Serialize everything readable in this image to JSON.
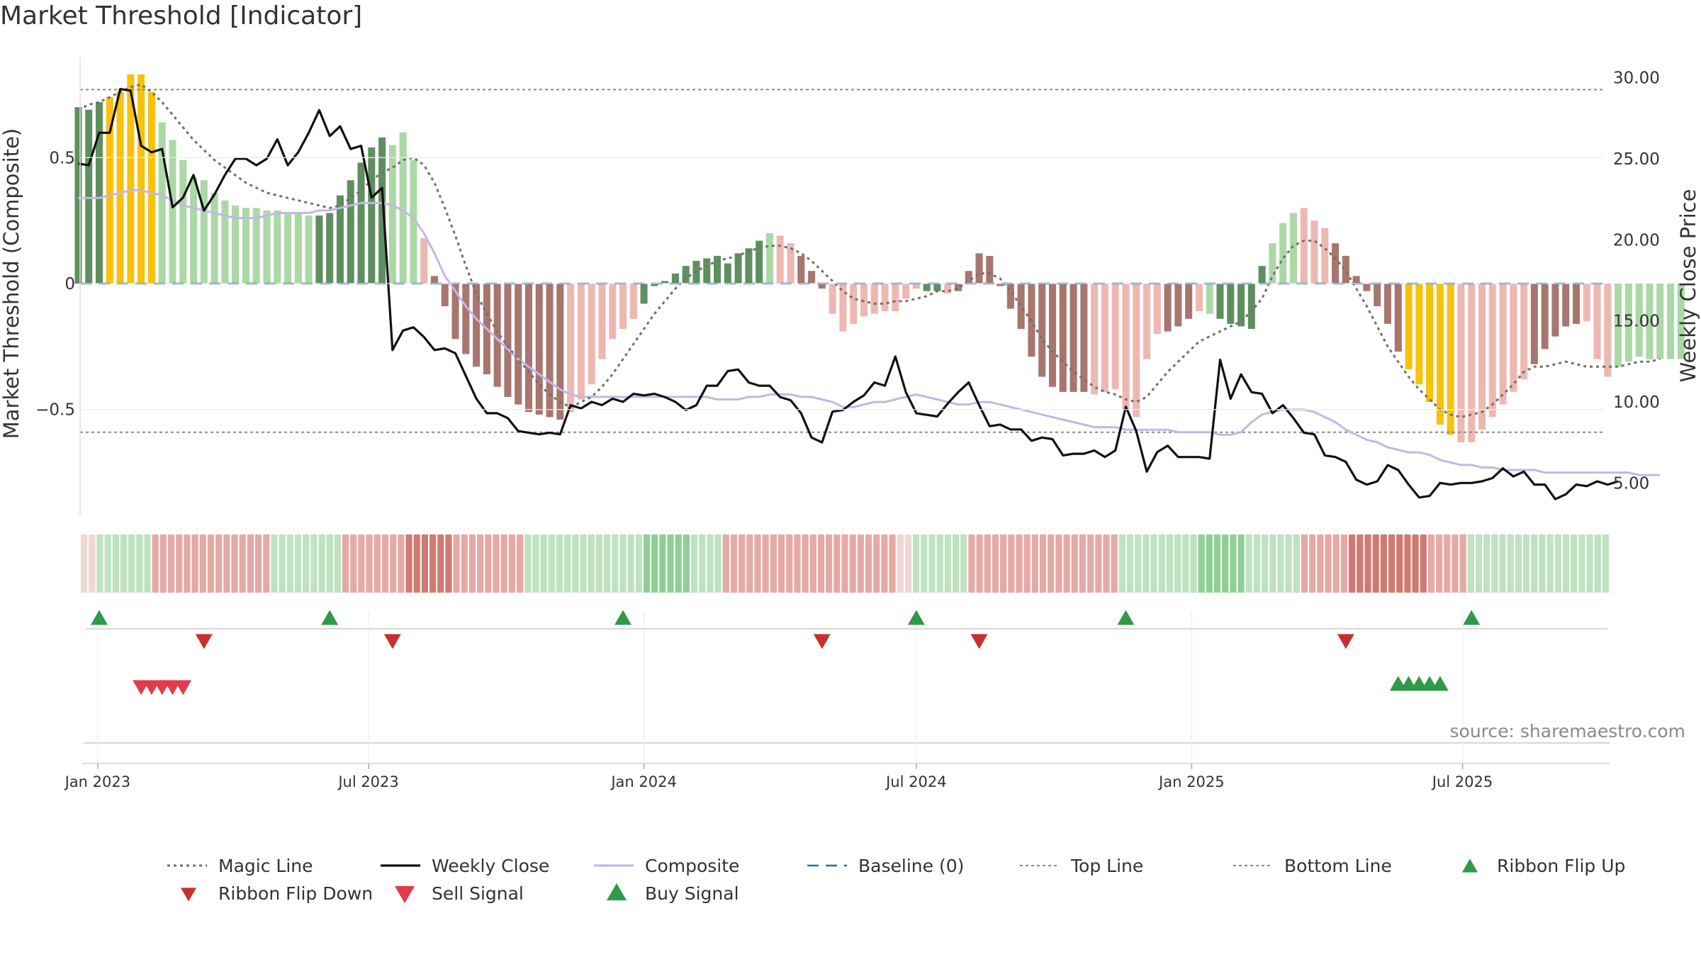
{
  "title": "Market Threshold [Indicator]",
  "source_label": "source: sharemaestro.com",
  "colors": {
    "greenDark": "#5f8f5f",
    "greenLight": "#acd8a6",
    "redDark": "#a8766f",
    "redLight": "#eeb8b2",
    "yellow": "#f8c10b",
    "composite": "#c2b8e6",
    "baseline": "#2d6ea3",
    "dotted": "#777777",
    "ribbonFlipDown": "#c8302f",
    "sellSignal": "#e23b4b",
    "buySignal": "#2f9a49"
  },
  "chart_data": {
    "type": "bar",
    "title": "Market Threshold [Indicator]",
    "ylabel": "Market Threshold (Composite)",
    "y2label": "Weekly Close Price",
    "x_ticks": [
      "Jan 2023",
      "Jul 2023",
      "Jan 2024",
      "Jul 2024",
      "Jan 2025",
      "Jul 2025"
    ],
    "x_range": [
      "2023-01-02",
      "2025-09-15"
    ],
    "y_ticks": [
      "0.5",
      "0",
      "−0.5"
    ],
    "y_tick_values": [
      0.5,
      0,
      -0.5
    ],
    "y2_ticks": [
      "30.00",
      "25.00",
      "20.00",
      "15.00",
      "10.00",
      "5.00"
    ],
    "y2_tick_values": [
      30,
      25,
      20,
      15,
      10,
      5
    ],
    "ylim": [
      -0.92,
      0.92
    ],
    "y2lim": [
      3.0,
      31.6
    ],
    "top_line": 0.77,
    "bottom_line": -0.59,
    "bar_start": "2022-12-19",
    "bar_interval_days": 7,
    "composite_bars": [
      0.7,
      0.69,
      0.72,
      0.74,
      0.76,
      0.83,
      0.83,
      0.76,
      0.64,
      0.57,
      0.49,
      0.42,
      0.41,
      0.36,
      0.33,
      0.31,
      0.3,
      0.3,
      0.29,
      0.29,
      0.28,
      0.28,
      0.27,
      0.27,
      0.28,
      0.35,
      0.41,
      0.48,
      0.54,
      0.58,
      0.55,
      0.6,
      0.49,
      0.18,
      0.03,
      -0.09,
      -0.22,
      -0.28,
      -0.33,
      -0.36,
      -0.41,
      -0.45,
      -0.48,
      -0.51,
      -0.52,
      -0.53,
      -0.54,
      -0.51,
      -0.46,
      -0.4,
      -0.3,
      -0.22,
      -0.18,
      -0.14,
      -0.08,
      -0.01,
      0.01,
      0.04,
      0.07,
      0.09,
      0.1,
      0.11,
      0.08,
      0.12,
      0.14,
      0.17,
      0.2,
      0.19,
      0.16,
      0.11,
      0.05,
      -0.02,
      -0.12,
      -0.19,
      -0.16,
      -0.13,
      -0.12,
      -0.11,
      -0.11,
      -0.06,
      -0.02,
      -0.03,
      -0.03,
      -0.04,
      -0.03,
      0.05,
      0.12,
      0.11,
      -0.01,
      -0.1,
      -0.18,
      -0.29,
      -0.37,
      -0.41,
      -0.43,
      -0.43,
      -0.43,
      -0.44,
      -0.43,
      -0.42,
      -0.5,
      -0.53,
      -0.3,
      -0.2,
      -0.19,
      -0.17,
      -0.14,
      -0.11,
      -0.12,
      -0.14,
      -0.16,
      -0.17,
      -0.18,
      0.07,
      0.16,
      0.24,
      0.28,
      0.3,
      0.25,
      0.22,
      0.16,
      0.11,
      0.03,
      -0.03,
      -0.09,
      -0.16,
      -0.27,
      -0.34,
      -0.4,
      -0.47,
      -0.56,
      -0.6,
      -0.63,
      -0.63,
      -0.58,
      -0.53,
      -0.48,
      -0.43,
      -0.38,
      -0.32,
      -0.26,
      -0.21,
      -0.17,
      -0.16,
      -0.15,
      -0.3,
      -0.37,
      -0.33,
      -0.31,
      -0.29,
      -0.3,
      -0.3,
      -0.3,
      -0.3
    ],
    "bar_color_codes": "GGGYYYYYLLLLLLLLLLLLLLLGGGGGGGLLLlRRRRRRRRRRRRRlllllllGGGGGGGGGGGGLllRRRlllllllllGGlRRRRRRRRRRRRRlllllllRRRlLGGGGGLLLlllRRRRRRRYYYYYlllllllRRRRRlll",
    "series": [
      {
        "name": "Magic Line",
        "style": "dotted",
        "axis": "left",
        "values": [
          0.69,
          0.71,
          0.72,
          0.74,
          0.76,
          0.78,
          0.79,
          0.76,
          0.72,
          0.67,
          0.62,
          0.57,
          0.53,
          0.49,
          0.46,
          0.43,
          0.4,
          0.38,
          0.36,
          0.35,
          0.34,
          0.33,
          0.32,
          0.31,
          0.3,
          0.31,
          0.34,
          0.37,
          0.41,
          0.44,
          0.46,
          0.49,
          0.5,
          0.47,
          0.4,
          0.3,
          0.19,
          0.07,
          -0.04,
          -0.12,
          -0.19,
          -0.25,
          -0.3,
          -0.35,
          -0.4,
          -0.44,
          -0.47,
          -0.49,
          -0.47,
          -0.45,
          -0.41,
          -0.36,
          -0.3,
          -0.24,
          -0.18,
          -0.12,
          -0.07,
          -0.02,
          0.02,
          0.05,
          0.07,
          0.09,
          0.1,
          0.11,
          0.13,
          0.14,
          0.15,
          0.15,
          0.14,
          0.12,
          0.09,
          0.05,
          0.01,
          -0.03,
          -0.06,
          -0.07,
          -0.08,
          -0.08,
          -0.07,
          -0.07,
          -0.06,
          -0.05,
          -0.03,
          -0.03,
          -0.02,
          0.01,
          0.04,
          0.04,
          0.02,
          -0.03,
          -0.09,
          -0.15,
          -0.22,
          -0.27,
          -0.31,
          -0.35,
          -0.38,
          -0.41,
          -0.43,
          -0.44,
          -0.46,
          -0.47,
          -0.45,
          -0.4,
          -0.35,
          -0.31,
          -0.27,
          -0.23,
          -0.21,
          -0.19,
          -0.17,
          -0.15,
          -0.11,
          -0.06,
          0.03,
          0.1,
          0.15,
          0.17,
          0.17,
          0.14,
          0.1,
          0.05,
          -0.02,
          -0.09,
          -0.17,
          -0.25,
          -0.31,
          -0.37,
          -0.42,
          -0.46,
          -0.5,
          -0.52,
          -0.53,
          -0.52,
          -0.51,
          -0.48,
          -0.44,
          -0.4,
          -0.35,
          -0.33,
          -0.33,
          -0.32,
          -0.31,
          -0.32,
          -0.33,
          -0.33,
          -0.33,
          -0.33,
          -0.32,
          -0.31,
          -0.31,
          -0.3
        ]
      },
      {
        "name": "Weekly Close",
        "style": "solid",
        "axis": "right",
        "values": [
          24.7,
          24.6,
          26.6,
          26.6,
          29.3,
          29.2,
          25.8,
          25.4,
          25.6,
          22.0,
          22.6,
          24.0,
          21.8,
          22.8,
          24.0,
          25.0,
          25.0,
          24.6,
          25.0,
          26.2,
          24.6,
          25.4,
          26.6,
          28.0,
          26.4,
          27.0,
          25.6,
          25.8,
          22.6,
          23.2,
          13.2,
          14.4,
          14.6,
          14.0,
          13.2,
          13.3,
          13.0,
          11.6,
          10.2,
          9.3,
          9.3,
          9.0,
          8.2,
          8.1,
          8.0,
          8.1,
          8.0,
          9.8,
          9.6,
          10.0,
          9.8,
          10.2,
          10.0,
          10.5,
          10.4,
          10.5,
          10.3,
          10.0,
          9.5,
          9.8,
          11.0,
          11.0,
          11.9,
          12.0,
          11.2,
          11.0,
          11.0,
          10.3,
          10.1,
          9.3,
          7.8,
          7.5,
          9.4,
          9.5,
          10.0,
          10.4,
          11.2,
          11.0,
          12.8,
          10.6,
          9.3,
          9.2,
          9.1,
          9.9,
          10.6,
          11.2,
          9.8,
          8.5,
          8.6,
          8.3,
          8.3,
          7.6,
          7.8,
          7.7,
          6.7,
          6.8,
          6.8,
          7.0,
          6.6,
          7.0,
          9.7,
          8.2,
          5.7,
          6.9,
          7.3,
          6.6,
          6.6,
          6.6,
          6.5,
          12.6,
          10.2,
          11.7,
          10.6,
          10.5,
          9.3,
          9.8,
          9.0,
          8.1,
          8.0,
          6.7,
          6.6,
          6.3,
          5.2,
          4.9,
          5.1,
          6.1,
          5.8,
          4.9,
          4.1,
          4.2,
          5.0,
          4.9,
          5.0,
          5.0,
          5.1,
          5.3,
          5.9,
          5.4,
          5.7,
          4.9,
          4.9,
          4.0,
          4.3,
          4.9,
          4.8,
          5.1,
          4.9,
          5.1
        ]
      },
      {
        "name": "Composite",
        "style": "solid",
        "axis": "left",
        "values": [
          0.34,
          0.34,
          0.34,
          0.35,
          0.36,
          0.37,
          0.37,
          0.36,
          0.35,
          0.33,
          0.31,
          0.3,
          0.29,
          0.28,
          0.27,
          0.26,
          0.26,
          0.26,
          0.27,
          0.28,
          0.28,
          0.28,
          0.28,
          0.29,
          0.29,
          0.3,
          0.31,
          0.32,
          0.32,
          0.32,
          0.31,
          0.29,
          0.26,
          0.2,
          0.12,
          0.03,
          -0.03,
          -0.09,
          -0.14,
          -0.18,
          -0.22,
          -0.26,
          -0.3,
          -0.33,
          -0.36,
          -0.39,
          -0.42,
          -0.44,
          -0.45,
          -0.45,
          -0.45,
          -0.45,
          -0.45,
          -0.45,
          -0.45,
          -0.45,
          -0.45,
          -0.45,
          -0.45,
          -0.45,
          -0.45,
          -0.46,
          -0.46,
          -0.46,
          -0.45,
          -0.45,
          -0.44,
          -0.44,
          -0.44,
          -0.45,
          -0.45,
          -0.46,
          -0.47,
          -0.49,
          -0.49,
          -0.48,
          -0.47,
          -0.47,
          -0.46,
          -0.45,
          -0.44,
          -0.45,
          -0.46,
          -0.47,
          -0.48,
          -0.48,
          -0.47,
          -0.47,
          -0.48,
          -0.49,
          -0.5,
          -0.51,
          -0.52,
          -0.53,
          -0.54,
          -0.55,
          -0.56,
          -0.57,
          -0.57,
          -0.57,
          -0.58,
          -0.58,
          -0.58,
          -0.58,
          -0.58,
          -0.59,
          -0.59,
          -0.59,
          -0.59,
          -0.6,
          -0.6,
          -0.59,
          -0.55,
          -0.52,
          -0.51,
          -0.5,
          -0.5,
          -0.5,
          -0.51,
          -0.53,
          -0.55,
          -0.58,
          -0.6,
          -0.62,
          -0.63,
          -0.65,
          -0.66,
          -0.67,
          -0.67,
          -0.68,
          -0.7,
          -0.71,
          -0.72,
          -0.72,
          -0.73,
          -0.73,
          -0.74,
          -0.74,
          -0.74,
          -0.74,
          -0.75,
          -0.75,
          -0.75,
          -0.75,
          -0.75,
          -0.75,
          -0.75,
          -0.75,
          -0.75,
          -0.76,
          -0.76,
          -0.76
        ]
      },
      {
        "name": "Baseline (0)",
        "style": "dashed",
        "axis": "left"
      },
      {
        "name": "Top Line",
        "style": "dotted",
        "axis": "left"
      },
      {
        "name": "Bottom Line",
        "style": "dotted",
        "axis": "left"
      }
    ],
    "ribbon_codes": "ppgggggggrrrrrrrrrrrrrrrgggggggggrrrrrrrrRRRRRRrrrrrrrrrgggggggggggggggGGGGGGggggrrrrrrrrrrrrrrrrrrrrrrppgggggggrrrrrrrrrrrrrrrrrrrggggggggggGGGGGGgggggggrrrrrrRRRRRRRRRRrrrrrgggggggggggggggggg",
    "ribbon_flip_up": [
      "2023-01-02",
      "2023-06-05",
      "2023-12-18",
      "2024-07-01",
      "2024-11-18",
      "2025-07-07"
    ],
    "ribbon_flip_down": [
      "2023-03-13",
      "2023-07-17",
      "2024-04-29",
      "2024-08-12",
      "2025-04-14"
    ],
    "sell_signal": [
      "2023-01-30",
      "2023-02-06",
      "2023-02-13",
      "2023-02-20",
      "2023-02-27"
    ],
    "buy_signal": [
      "2025-05-19",
      "2025-05-26",
      "2025-06-02",
      "2025-06-09",
      "2025-06-16"
    ],
    "legend": [
      "Magic Line",
      "Weekly Close",
      "Composite",
      "Baseline (0)",
      "Top Line",
      "Bottom Line",
      "Ribbon Flip Up",
      "Ribbon Flip Down",
      "Sell Signal",
      "Buy Signal"
    ]
  }
}
